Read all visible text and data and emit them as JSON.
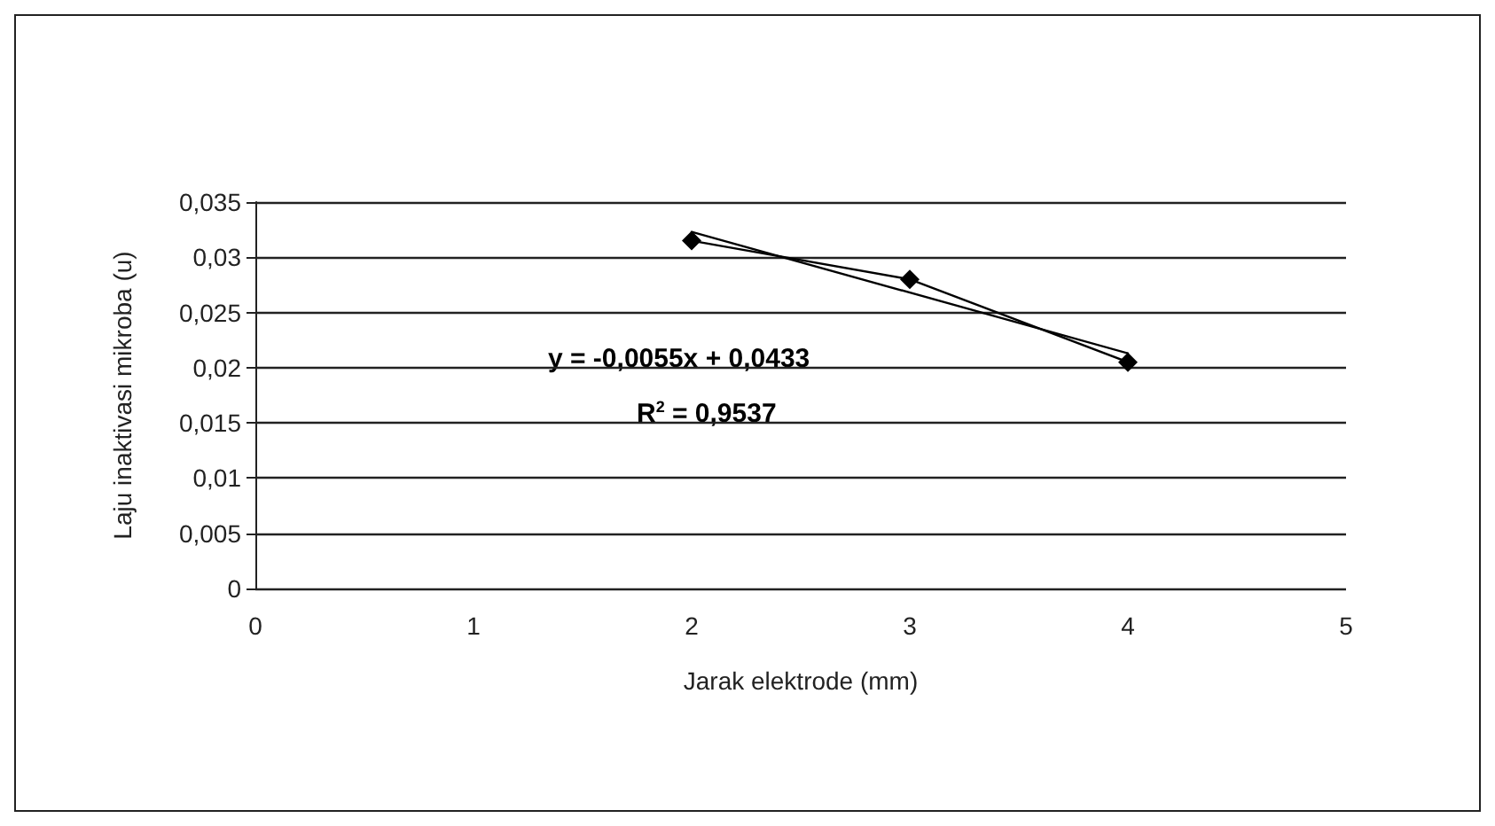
{
  "chart_data": {
    "type": "line",
    "xlabel": "Jarak elektrode (mm)",
    "ylabel": "Laju inaktivasi mikroba (u)",
    "x": [
      2,
      3,
      4
    ],
    "series": [
      {
        "color": "#000000",
        "values": [
          0.0315,
          0.028,
          0.0205
        ],
        "marker": "diamond",
        "line_style": "solid"
      },
      {
        "color": "#000000",
        "x": [
          2,
          4
        ],
        "values": [
          0.0323,
          0.0213
        ],
        "marker": "none",
        "line_style": "solid"
      }
    ],
    "xlim": [
      0,
      5
    ],
    "xticks": [
      0,
      1,
      2,
      3,
      4,
      5
    ],
    "ylim": [
      0,
      0.035
    ],
    "yticks": [
      {
        "value": 0,
        "label": "0"
      },
      {
        "value": 0.005,
        "label": "0,005"
      },
      {
        "value": 0.01,
        "label": "0,01"
      },
      {
        "value": 0.015,
        "label": "0,015"
      },
      {
        "value": 0.02,
        "label": "0,02"
      },
      {
        "value": 0.025,
        "label": "0,025"
      },
      {
        "value": 0.03,
        "label": "0,03"
      },
      {
        "value": 0.035,
        "label": "0,035"
      }
    ],
    "grid": "y",
    "annotations": [
      "y = -0,0055x + 0,0433",
      "R$^{2}$ = 0,9537"
    ]
  }
}
